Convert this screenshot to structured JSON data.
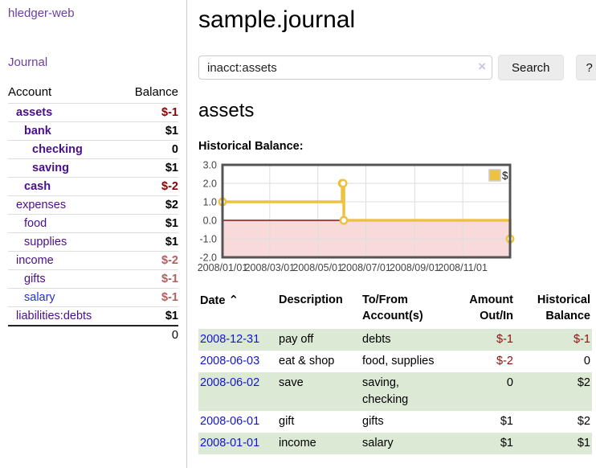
{
  "sidebar": {
    "brand": "hledger-web",
    "journal_link": "Journal",
    "accounts": {
      "header_account": "Account",
      "header_balance": "Balance",
      "rows": [
        {
          "name": "assets",
          "balance": "$-1"
        },
        {
          "name": "bank",
          "balance": "$1"
        },
        {
          "name": "checking",
          "balance": "0"
        },
        {
          "name": "saving",
          "balance": "$1"
        },
        {
          "name": "cash",
          "balance": "$-2"
        },
        {
          "name": "expenses",
          "balance": "$2"
        },
        {
          "name": "food",
          "balance": "$1"
        },
        {
          "name": "supplies",
          "balance": "$1"
        },
        {
          "name": "income",
          "balance": "$-2"
        },
        {
          "name": "gifts",
          "balance": "$-1"
        },
        {
          "name": "salary",
          "balance": "$-1"
        },
        {
          "name": "liabilities:debts",
          "balance": "$1"
        }
      ],
      "total": "0"
    }
  },
  "main": {
    "title": "sample.journal",
    "search": {
      "value": "inacct:assets",
      "clear_icon": "×",
      "button_label": "Search",
      "help_label": "?"
    },
    "account_heading": "assets"
  },
  "chart_data": {
    "type": "line",
    "style": "step-after",
    "title": "Historical Balance:",
    "legend": {
      "label": "$",
      "position": "top-right"
    },
    "series": [
      {
        "name": "$",
        "color": "#EDC240",
        "points": [
          [
            "2008-01-01",
            1
          ],
          [
            "2008-06-01",
            2
          ],
          [
            "2008-06-02",
            2
          ],
          [
            "2008-06-03",
            0
          ],
          [
            "2008-12-31",
            -1
          ]
        ]
      }
    ],
    "x_range": [
      "2008-01-01",
      "2008-12-31"
    ],
    "ylim": [
      -2,
      3
    ],
    "y_ticks": [
      3.0,
      2.0,
      1.0,
      0.0,
      -1.0,
      -2.0
    ],
    "y_tick_labels": [
      "3.0",
      "2.0",
      "1.0",
      "0.0",
      "-1.0",
      "-2.0"
    ],
    "x_tick_dates": [
      "2008-01-01",
      "2008-03-01",
      "2008-05-01",
      "2008-07-01",
      "2008-09-01",
      "2008-11-01"
    ],
    "x_tick_labels": [
      "2008/01/01",
      "2008/03/01",
      "2008/05/01",
      "2008/07/01",
      "2008/09/01",
      "2008/11/01"
    ],
    "grid": true,
    "negative_region_color": "#f9dada",
    "zero_line_color": "#8b0f0f",
    "border_color": "#545454",
    "grid_color": "#dddddd"
  },
  "register": {
    "headers": {
      "date": "Date",
      "sort_icon": "⌃",
      "description": "Description",
      "accounts": "To/From\nAccount(s)",
      "amount": "Amount\nOut/In",
      "balance": "Historical\nBalance"
    },
    "rows": [
      {
        "date": "2008-12-31",
        "description": "pay off",
        "accounts": "debts",
        "amount": "$-1",
        "balance": "$-1"
      },
      {
        "date": "2008-06-03",
        "description": "eat & shop",
        "accounts": "food, supplies",
        "amount": "$-2",
        "balance": "0"
      },
      {
        "date": "2008-06-02",
        "description": "save",
        "accounts": "saving,\nchecking",
        "amount": "0",
        "balance": "$2"
      },
      {
        "date": "2008-06-01",
        "description": "gift",
        "accounts": "gifts",
        "amount": "$1",
        "balance": "$2"
      },
      {
        "date": "2008-01-01",
        "description": "income",
        "accounts": "salary",
        "amount": "$1",
        "balance": "$1"
      }
    ]
  }
}
